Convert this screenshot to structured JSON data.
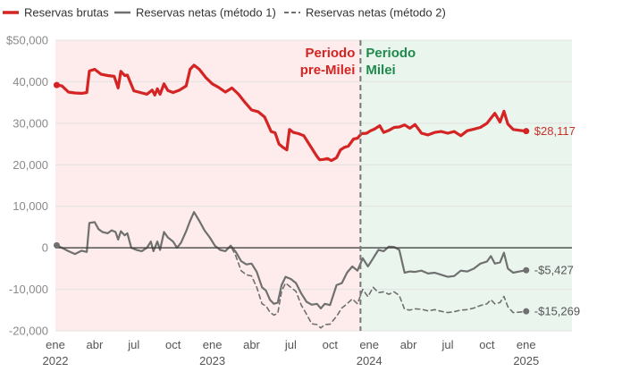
{
  "chart_data": {
    "type": "line",
    "title": "",
    "xlabel": "",
    "ylabel": "",
    "ylim": [
      -20000,
      50000
    ],
    "y_ticks": [
      -20000,
      -10000,
      0,
      10000,
      20000,
      30000,
      40000,
      50000
    ],
    "y_tick_labels": [
      "-20,000",
      "-10,000",
      "0",
      "10,000",
      "20,000",
      "30,000",
      "40,000",
      "$50,000"
    ],
    "x_range": [
      0,
      39.5
    ],
    "x_ticks": [
      {
        "x": 0,
        "label": "ene",
        "year": "2022"
      },
      {
        "x": 3,
        "label": "abr",
        "year": ""
      },
      {
        "x": 6,
        "label": "jul",
        "year": ""
      },
      {
        "x": 9,
        "label": "oct",
        "year": ""
      },
      {
        "x": 12,
        "label": "ene",
        "year": "2023"
      },
      {
        "x": 15,
        "label": "abr",
        "year": ""
      },
      {
        "x": 18,
        "label": "jul",
        "year": ""
      },
      {
        "x": 21,
        "label": "oct",
        "year": ""
      },
      {
        "x": 24,
        "label": "ene",
        "year": "2024"
      },
      {
        "x": 27,
        "label": "abr",
        "year": ""
      },
      {
        "x": 30,
        "label": "jul",
        "year": ""
      },
      {
        "x": 33,
        "label": "oct",
        "year": ""
      },
      {
        "x": 36,
        "label": "ene",
        "year": "2025"
      }
    ],
    "divider_x": 23.33,
    "periods": [
      {
        "label_line1": "Periodo",
        "label_line2": "pre-Milei",
        "color": "#d42424",
        "shade": "#fdeceb"
      },
      {
        "label_line1": "Periodo",
        "label_line2": "Milei",
        "color": "#1f8a4c",
        "shade": "#eaf5ee"
      }
    ],
    "legend": [
      {
        "name": "Reservas brutas",
        "color": "#d42424",
        "style": "solid"
      },
      {
        "name": "Reservas netas (método 1)",
        "color": "#707070",
        "style": "solid"
      },
      {
        "name": "Reservas netas (método 2)",
        "color": "#707070",
        "style": "dashed"
      }
    ],
    "series": [
      {
        "name": "Reservas brutas",
        "color": "#d42424",
        "dash": false,
        "end_label": "$28,117",
        "points": [
          [
            0.1,
            39200
          ],
          [
            0.5,
            39000
          ],
          [
            1.0,
            37500
          ],
          [
            1.5,
            37300
          ],
          [
            2.0,
            37200
          ],
          [
            2.4,
            37400
          ],
          [
            2.6,
            42600
          ],
          [
            3.0,
            43000
          ],
          [
            3.5,
            41800
          ],
          [
            4.0,
            41500
          ],
          [
            4.5,
            41300
          ],
          [
            4.8,
            38500
          ],
          [
            5.0,
            42500
          ],
          [
            5.3,
            41500
          ],
          [
            5.5,
            41600
          ],
          [
            6.0,
            37800
          ],
          [
            6.5,
            37400
          ],
          [
            7.0,
            37000
          ],
          [
            7.4,
            38000
          ],
          [
            7.6,
            36800
          ],
          [
            7.8,
            38300
          ],
          [
            8.0,
            37000
          ],
          [
            8.3,
            39500
          ],
          [
            8.6,
            37900
          ],
          [
            9.0,
            37400
          ],
          [
            9.5,
            38000
          ],
          [
            10.0,
            39000
          ],
          [
            10.3,
            43000
          ],
          [
            10.6,
            44000
          ],
          [
            11.0,
            43000
          ],
          [
            11.5,
            41000
          ],
          [
            12.0,
            39500
          ],
          [
            12.5,
            38600
          ],
          [
            13.0,
            37500
          ],
          [
            13.5,
            38500
          ],
          [
            14.0,
            37000
          ],
          [
            14.5,
            35000
          ],
          [
            15.0,
            33200
          ],
          [
            15.5,
            32800
          ],
          [
            16.0,
            31500
          ],
          [
            16.5,
            28000
          ],
          [
            16.8,
            27700
          ],
          [
            17.1,
            25000
          ],
          [
            17.4,
            24200
          ],
          [
            17.7,
            23600
          ],
          [
            17.9,
            28500
          ],
          [
            18.2,
            27800
          ],
          [
            18.6,
            27500
          ],
          [
            19.0,
            27000
          ],
          [
            19.5,
            24500
          ],
          [
            20.0,
            22000
          ],
          [
            20.2,
            21200
          ],
          [
            20.5,
            21300
          ],
          [
            20.8,
            21500
          ],
          [
            21.1,
            21000
          ],
          [
            21.5,
            21700
          ],
          [
            21.8,
            23600
          ],
          [
            22.1,
            24200
          ],
          [
            22.4,
            24500
          ],
          [
            22.8,
            26200
          ],
          [
            23.1,
            26400
          ],
          [
            23.4,
            27500
          ],
          [
            23.8,
            27600
          ],
          [
            24.1,
            28200
          ],
          [
            24.4,
            28600
          ],
          [
            24.8,
            29400
          ],
          [
            25.1,
            27800
          ],
          [
            25.5,
            28300
          ],
          [
            25.9,
            29000
          ],
          [
            26.3,
            29100
          ],
          [
            26.7,
            29600
          ],
          [
            27.1,
            28800
          ],
          [
            27.5,
            29700
          ],
          [
            28.0,
            27600
          ],
          [
            28.5,
            27200
          ],
          [
            29.0,
            27800
          ],
          [
            29.5,
            28000
          ],
          [
            30.0,
            27600
          ],
          [
            30.5,
            28000
          ],
          [
            31.0,
            27000
          ],
          [
            31.5,
            28200
          ],
          [
            32.0,
            28600
          ],
          [
            32.5,
            29000
          ],
          [
            33.0,
            30000
          ],
          [
            33.3,
            31200
          ],
          [
            33.6,
            32400
          ],
          [
            34.0,
            30300
          ],
          [
            34.3,
            32900
          ],
          [
            34.6,
            29800
          ],
          [
            35.0,
            28500
          ],
          [
            35.5,
            28300
          ],
          [
            36.0,
            28100
          ]
        ]
      },
      {
        "name": "Reservas netas (método 1)",
        "color": "#707070",
        "dash": false,
        "end_label": "-$5,427",
        "points": [
          [
            0.1,
            600
          ],
          [
            0.5,
            0
          ],
          [
            1.0,
            -800
          ],
          [
            1.5,
            -1500
          ],
          [
            2.0,
            -700
          ],
          [
            2.4,
            -1000
          ],
          [
            2.6,
            6000
          ],
          [
            3.0,
            6200
          ],
          [
            3.3,
            4500
          ],
          [
            3.6,
            3800
          ],
          [
            4.0,
            3500
          ],
          [
            4.3,
            4200
          ],
          [
            4.6,
            3800
          ],
          [
            4.8,
            2000
          ],
          [
            5.0,
            4000
          ],
          [
            5.3,
            3000
          ],
          [
            5.5,
            3500
          ],
          [
            5.8,
            0
          ],
          [
            6.2,
            -500
          ],
          [
            6.6,
            -800
          ],
          [
            7.0,
            0
          ],
          [
            7.3,
            1500
          ],
          [
            7.5,
            -800
          ],
          [
            7.8,
            1500
          ],
          [
            8.0,
            -500
          ],
          [
            8.3,
            3800
          ],
          [
            8.6,
            2500
          ],
          [
            9.0,
            1500
          ],
          [
            9.3,
            0
          ],
          [
            9.6,
            1200
          ],
          [
            10.0,
            4000
          ],
          [
            10.3,
            6500
          ],
          [
            10.6,
            8600
          ],
          [
            11.0,
            6500
          ],
          [
            11.4,
            4200
          ],
          [
            11.8,
            2500
          ],
          [
            12.2,
            500
          ],
          [
            12.6,
            -500
          ],
          [
            13.0,
            -800
          ],
          [
            13.4,
            500
          ],
          [
            13.8,
            -1000
          ],
          [
            14.2,
            -3200
          ],
          [
            14.6,
            -4000
          ],
          [
            15.0,
            -3800
          ],
          [
            15.4,
            -5800
          ],
          [
            15.8,
            -9500
          ],
          [
            16.1,
            -10300
          ],
          [
            16.4,
            -12500
          ],
          [
            16.7,
            -13500
          ],
          [
            17.0,
            -13200
          ],
          [
            17.3,
            -9000
          ],
          [
            17.6,
            -7000
          ],
          [
            18.0,
            -7500
          ],
          [
            18.4,
            -8500
          ],
          [
            18.8,
            -11000
          ],
          [
            19.2,
            -13000
          ],
          [
            19.6,
            -13700
          ],
          [
            20.0,
            -13500
          ],
          [
            20.3,
            -14600
          ],
          [
            20.6,
            -13500
          ],
          [
            21.0,
            -13800
          ],
          [
            21.5,
            -9000
          ],
          [
            21.9,
            -8500
          ],
          [
            22.3,
            -6000
          ],
          [
            22.7,
            -4500
          ],
          [
            23.1,
            -5500
          ],
          [
            23.5,
            -2500
          ],
          [
            23.9,
            -4500
          ],
          [
            24.3,
            -2500
          ],
          [
            24.7,
            -500
          ],
          [
            25.1,
            -800
          ],
          [
            25.5,
            300
          ],
          [
            25.9,
            200
          ],
          [
            26.3,
            -500
          ],
          [
            26.7,
            -6000
          ],
          [
            27.1,
            -5700
          ],
          [
            27.5,
            -5800
          ],
          [
            28.0,
            -5500
          ],
          [
            28.5,
            -6200
          ],
          [
            29.0,
            -6000
          ],
          [
            29.5,
            -6500
          ],
          [
            30.0,
            -7000
          ],
          [
            30.5,
            -6800
          ],
          [
            31.0,
            -5500
          ],
          [
            31.5,
            -5700
          ],
          [
            32.0,
            -5000
          ],
          [
            32.5,
            -3800
          ],
          [
            33.0,
            -3300
          ],
          [
            33.3,
            -2000
          ],
          [
            33.6,
            -3800
          ],
          [
            34.0,
            -3500
          ],
          [
            34.3,
            -1200
          ],
          [
            34.6,
            -5000
          ],
          [
            35.0,
            -6000
          ],
          [
            35.5,
            -5700
          ],
          [
            36.0,
            -5400
          ]
        ]
      },
      {
        "name": "Reservas netas (método 2)",
        "color": "#707070",
        "dash": true,
        "end_label": "-$15,269",
        "points": [
          [
            0.1,
            600
          ],
          [
            0.5,
            0
          ],
          [
            1.0,
            -800
          ],
          [
            1.5,
            -1500
          ],
          [
            2.0,
            -700
          ],
          [
            2.4,
            -1000
          ],
          [
            2.6,
            6000
          ],
          [
            3.0,
            6200
          ],
          [
            3.3,
            4500
          ],
          [
            3.6,
            3800
          ],
          [
            4.0,
            3500
          ],
          [
            4.3,
            4200
          ],
          [
            4.6,
            3800
          ],
          [
            4.8,
            2000
          ],
          [
            5.0,
            4000
          ],
          [
            5.3,
            3000
          ],
          [
            5.5,
            3500
          ],
          [
            5.8,
            0
          ],
          [
            6.2,
            -500
          ],
          [
            6.6,
            -800
          ],
          [
            7.0,
            0
          ],
          [
            7.3,
            1500
          ],
          [
            7.5,
            -800
          ],
          [
            7.8,
            1500
          ],
          [
            8.0,
            -500
          ],
          [
            8.3,
            3800
          ],
          [
            8.6,
            2500
          ],
          [
            9.0,
            1500
          ],
          [
            9.3,
            0
          ],
          [
            9.6,
            1200
          ],
          [
            10.0,
            4000
          ],
          [
            10.3,
            6500
          ],
          [
            10.6,
            8600
          ],
          [
            11.0,
            6500
          ],
          [
            11.4,
            4200
          ],
          [
            11.8,
            2500
          ],
          [
            12.2,
            500
          ],
          [
            12.6,
            -500
          ],
          [
            13.0,
            -800
          ],
          [
            13.4,
            500
          ],
          [
            13.8,
            -2000
          ],
          [
            14.2,
            -5500
          ],
          [
            14.6,
            -6500
          ],
          [
            15.0,
            -6800
          ],
          [
            15.4,
            -9500
          ],
          [
            15.8,
            -13500
          ],
          [
            16.1,
            -14000
          ],
          [
            16.4,
            -15500
          ],
          [
            16.7,
            -16200
          ],
          [
            17.0,
            -15800
          ],
          [
            17.3,
            -10500
          ],
          [
            17.6,
            -8500
          ],
          [
            18.0,
            -9500
          ],
          [
            18.4,
            -10500
          ],
          [
            18.8,
            -13800
          ],
          [
            19.2,
            -16000
          ],
          [
            19.6,
            -18300
          ],
          [
            20.0,
            -18500
          ],
          [
            20.3,
            -19300
          ],
          [
            20.6,
            -18500
          ],
          [
            21.0,
            -18400
          ],
          [
            21.5,
            -16500
          ],
          [
            21.9,
            -14500
          ],
          [
            22.3,
            -13500
          ],
          [
            22.7,
            -12300
          ],
          [
            23.1,
            -13500
          ],
          [
            23.5,
            -10000
          ],
          [
            23.9,
            -11800
          ],
          [
            24.3,
            -9500
          ],
          [
            24.7,
            -10800
          ],
          [
            25.1,
            -10600
          ],
          [
            25.5,
            -11200
          ],
          [
            25.9,
            -10600
          ],
          [
            26.3,
            -11500
          ],
          [
            26.7,
            -14800
          ],
          [
            27.1,
            -15000
          ],
          [
            27.5,
            -14700
          ],
          [
            28.0,
            -14800
          ],
          [
            28.5,
            -15200
          ],
          [
            29.0,
            -14900
          ],
          [
            29.5,
            -15300
          ],
          [
            30.0,
            -15600
          ],
          [
            30.5,
            -15400
          ],
          [
            31.0,
            -15000
          ],
          [
            31.5,
            -14900
          ],
          [
            32.0,
            -14500
          ],
          [
            32.5,
            -13900
          ],
          [
            33.0,
            -13500
          ],
          [
            33.3,
            -12500
          ],
          [
            33.6,
            -13500
          ],
          [
            34.0,
            -13200
          ],
          [
            34.3,
            -11700
          ],
          [
            34.6,
            -14200
          ],
          [
            35.0,
            -15600
          ],
          [
            35.5,
            -15500
          ],
          [
            36.0,
            -15300
          ]
        ]
      }
    ]
  }
}
